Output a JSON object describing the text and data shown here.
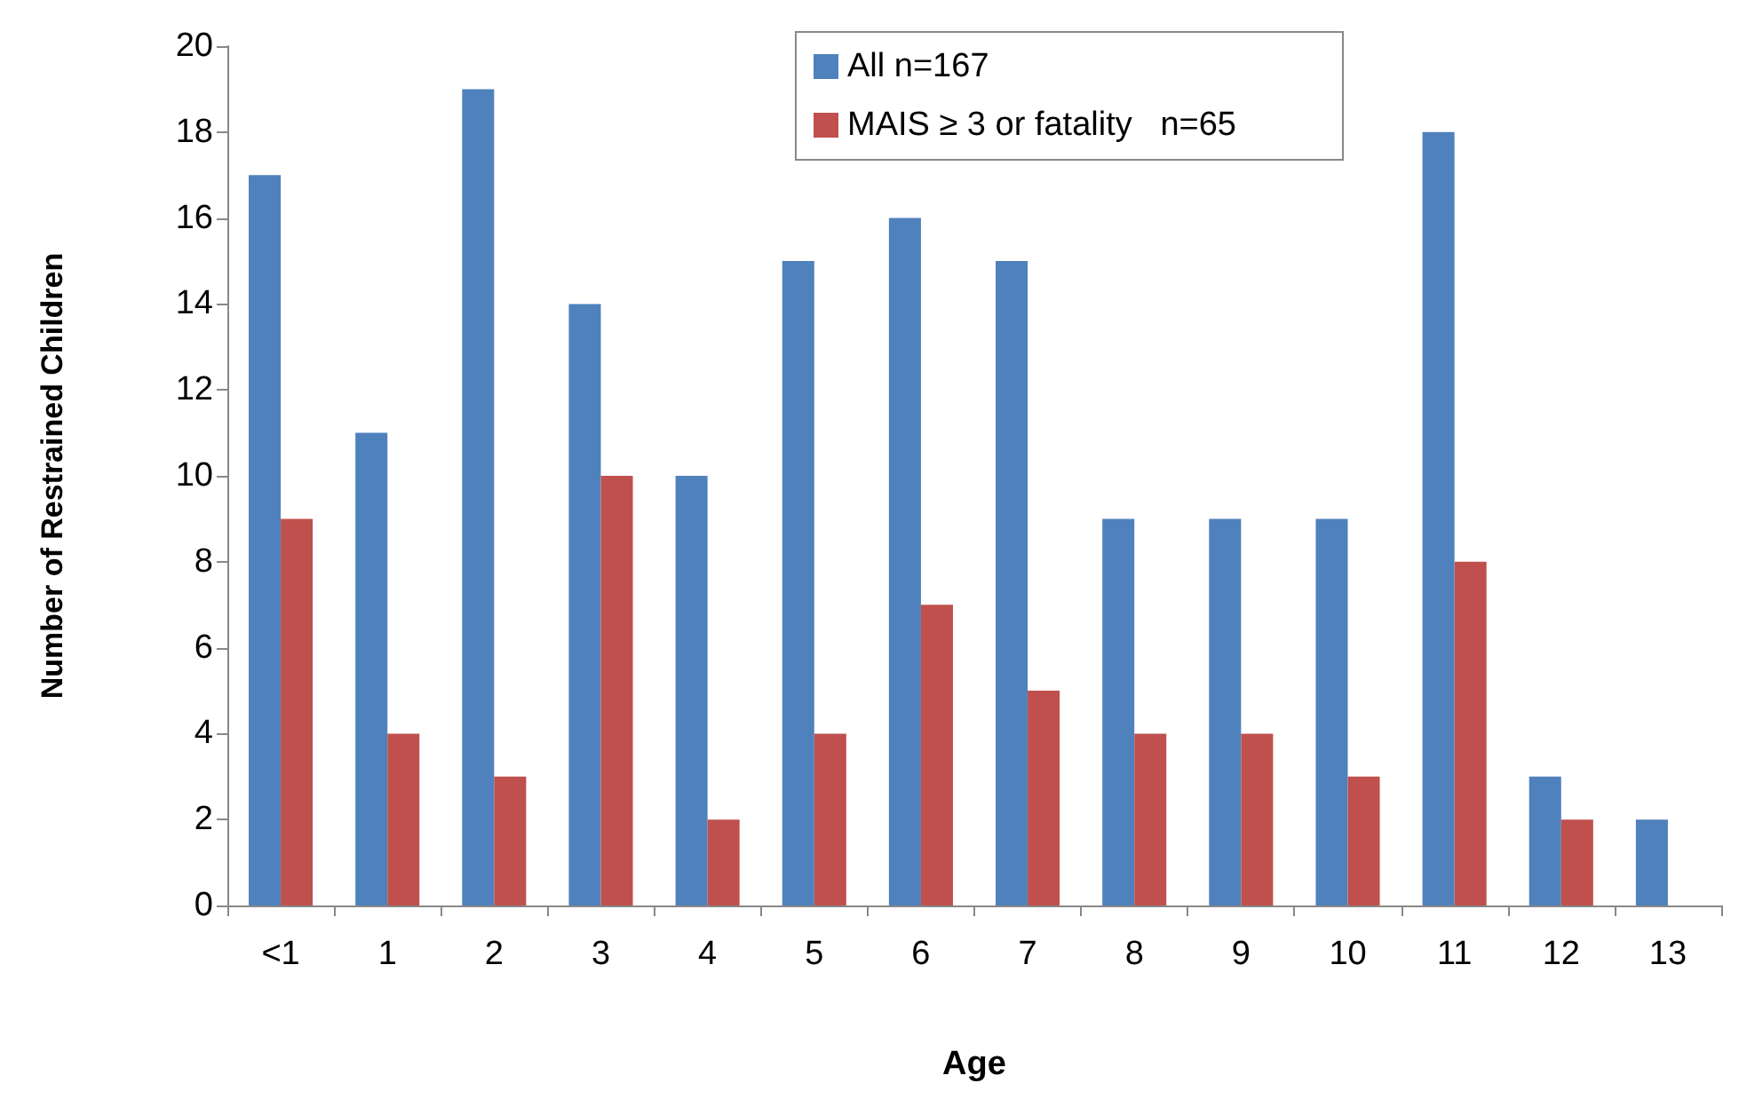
{
  "chart_data": {
    "type": "bar",
    "xlabel": "Age",
    "ylabel": "Number of Restrained Children",
    "categories": [
      "<1",
      "1",
      "2",
      "3",
      "4",
      "5",
      "6",
      "7",
      "8",
      "9",
      "10",
      "11",
      "12",
      "13"
    ],
    "series": [
      {
        "name": "All n=167",
        "color": "#4f81bd",
        "values": [
          17,
          11,
          19,
          14,
          10,
          15,
          16,
          15,
          9,
          9,
          9,
          18,
          3,
          2
        ]
      },
      {
        "name": "MAIS ≥ 3 or fatality   n=65",
        "color": "#c0504d",
        "values": [
          9,
          4,
          3,
          10,
          2,
          4,
          7,
          5,
          4,
          4,
          3,
          8,
          2,
          0
        ]
      }
    ],
    "ylim": [
      0,
      20
    ],
    "yticks": [
      0,
      2,
      4,
      6,
      8,
      10,
      12,
      14,
      16,
      18,
      20
    ],
    "grid": false,
    "legend": "top"
  }
}
